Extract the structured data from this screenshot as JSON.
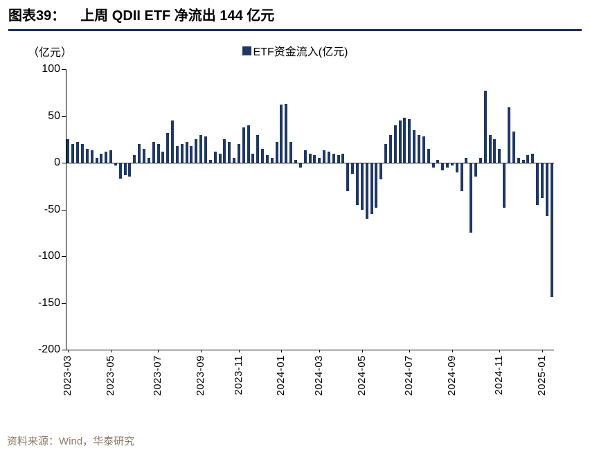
{
  "figure": {
    "label": "图表39：",
    "heading": "上周 QDII ETF 净流出 144 亿元",
    "source": "资料来源：Wind，华泰研究"
  },
  "chart_data": {
    "type": "bar",
    "title": "上周 QDII ETF 净流出 144 亿元",
    "unit_label": "（亿元）",
    "legend": "ETF资金流入(亿元)",
    "bar_color": "#1F3864",
    "axis_color": "#000000",
    "grid": false,
    "legend_position": "top-center",
    "ylim": [
      -200,
      100
    ],
    "yticks": [
      100,
      50,
      0,
      -50,
      -100,
      -150,
      -200
    ],
    "x_labels": [
      {
        "label": "2023-03",
        "index": 0
      },
      {
        "label": "2023-05",
        "index": 9
      },
      {
        "label": "2023-07",
        "index": 19
      },
      {
        "label": "2023-09",
        "index": 28
      },
      {
        "label": "2023-11",
        "index": 36
      },
      {
        "label": "2024-01",
        "index": 45
      },
      {
        "label": "2024-03",
        "index": 53
      },
      {
        "label": "2024-05",
        "index": 62
      },
      {
        "label": "2024-07",
        "index": 72
      },
      {
        "label": "2024-09",
        "index": 81
      },
      {
        "label": "2024-11",
        "index": 91
      },
      {
        "label": "2025-01",
        "index": 100
      }
    ],
    "values": [
      25,
      20,
      22,
      20,
      15,
      13,
      5,
      10,
      12,
      13,
      -3,
      -17,
      -13,
      -15,
      8,
      20,
      15,
      5,
      22,
      20,
      12,
      32,
      45,
      18,
      20,
      22,
      18,
      25,
      30,
      28,
      3,
      12,
      10,
      25,
      22,
      5,
      20,
      38,
      40,
      10,
      30,
      15,
      8,
      5,
      22,
      62,
      63,
      22,
      3,
      -5,
      13,
      10,
      8,
      5,
      13,
      12,
      10,
      8,
      10,
      -30,
      -12,
      -45,
      -50,
      -60,
      -55,
      -48,
      -18,
      20,
      30,
      40,
      45,
      48,
      47,
      35,
      30,
      28,
      15,
      -5,
      3,
      -8,
      -5,
      -3,
      -10,
      -30,
      5,
      -75,
      -15,
      5,
      77,
      30,
      25,
      15,
      -48,
      59,
      33,
      5,
      3,
      8,
      10,
      -45,
      -38,
      -57,
      -144
    ]
  }
}
